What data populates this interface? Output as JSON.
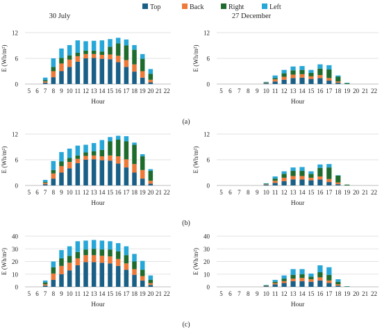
{
  "legend": {
    "position": "top-center",
    "items": [
      {
        "name": "Top",
        "color": "#1a5f86"
      },
      {
        "name": "Back",
        "color": "#ee7a3a"
      },
      {
        "name": "Right",
        "color": "#1f6b2e"
      },
      {
        "name": "Left",
        "color": "#27a7d8"
      }
    ]
  },
  "column_titles": [
    "30 July",
    "27 December"
  ],
  "panel_labels": [
    "(a)",
    "(b)",
    "(c)"
  ],
  "chart_data": [
    {
      "type": "bar",
      "stacked": true,
      "panel": "(a)",
      "title": "30 July",
      "xlabel": "Hour",
      "ylabel": "E (Wh/m²)",
      "categories": [
        "5",
        "6",
        "7",
        "8",
        "9",
        "10",
        "11",
        "12",
        "13",
        "14",
        "15",
        "16",
        "17",
        "18",
        "19",
        "20",
        "21",
        "22"
      ],
      "ylim": [
        0,
        12
      ],
      "yticks": [
        0,
        6,
        12
      ],
      "series": [
        {
          "name": "Top",
          "values": [
            0,
            0,
            0.3,
            1.6,
            3.0,
            4.0,
            5.2,
            6.0,
            6.1,
            5.9,
            5.8,
            5.1,
            4.0,
            2.9,
            1.5,
            0.4,
            0,
            0
          ]
        },
        {
          "name": "Back",
          "values": [
            0,
            0,
            0.3,
            1.4,
            1.8,
            1.7,
            1.3,
            1.0,
            0.9,
            0.9,
            1.1,
            1.5,
            1.6,
            1.7,
            1.5,
            0.6,
            0,
            0
          ]
        },
        {
          "name": "Right",
          "values": [
            0,
            0,
            0.3,
            1.0,
            1.3,
            1.0,
            0.8,
            0.8,
            0.8,
            0.8,
            1.8,
            2.9,
            3.4,
            3.4,
            2.9,
            1.4,
            0,
            0
          ]
        },
        {
          "name": "Left",
          "values": [
            0,
            0,
            0.6,
            2.0,
            2.2,
            2.4,
            2.9,
            2.2,
            2.3,
            2.6,
            1.8,
            1.3,
            1.4,
            1.1,
            1.1,
            1.1,
            0,
            0
          ]
        }
      ]
    },
    {
      "type": "bar",
      "stacked": true,
      "panel": "(a)",
      "title": "27 December",
      "xlabel": "Hour",
      "ylabel": "E (Wh/m²)",
      "categories": [
        "5",
        "6",
        "7",
        "8",
        "9",
        "10",
        "11",
        "12",
        "13",
        "14",
        "15",
        "16",
        "17",
        "18",
        "19",
        "20",
        "21",
        "22"
      ],
      "ylim": [
        0,
        12
      ],
      "yticks": [
        0,
        6,
        12
      ],
      "series": [
        {
          "name": "Top",
          "values": [
            0,
            0,
            0,
            0,
            0,
            0.2,
            0.6,
            1.0,
            1.4,
            1.5,
            1.2,
            1.4,
            0.8,
            0.3,
            0,
            0,
            0,
            0
          ]
        },
        {
          "name": "Back",
          "values": [
            0,
            0,
            0,
            0,
            0,
            0.1,
            0.5,
            0.7,
            0.8,
            0.8,
            0.6,
            0.7,
            0.6,
            0.3,
            0,
            0,
            0,
            0
          ]
        },
        {
          "name": "Right",
          "values": [
            0,
            0,
            0,
            0,
            0,
            0.1,
            0.3,
            0.8,
            1.0,
            1.0,
            0.8,
            1.5,
            2.0,
            1.1,
            0.2,
            0,
            0,
            0
          ]
        },
        {
          "name": "Left",
          "values": [
            0,
            0,
            0,
            0,
            0,
            0.1,
            0.6,
            0.8,
            0.9,
            0.9,
            0.7,
            1.0,
            1.0,
            0.3,
            0.1,
            0,
            0,
            0
          ]
        }
      ]
    },
    {
      "type": "bar",
      "stacked": true,
      "panel": "(b)",
      "title": "",
      "xlabel": "Hour",
      "ylabel": "E (Wh/m²)",
      "categories": [
        "5",
        "6",
        "7",
        "8",
        "9",
        "10",
        "11",
        "12",
        "13",
        "14",
        "15",
        "16",
        "17",
        "18",
        "19",
        "20",
        "21",
        "22"
      ],
      "ylim": [
        0,
        12
      ],
      "yticks": [
        0,
        6,
        12
      ],
      "series": [
        {
          "name": "Top",
          "values": [
            0,
            0,
            0.3,
            1.6,
            3.0,
            4.0,
            5.2,
            6.0,
            6.1,
            5.9,
            5.8,
            5.1,
            4.2,
            3.0,
            1.6,
            0.4,
            0,
            0
          ]
        },
        {
          "name": "Back",
          "values": [
            0,
            0,
            0.3,
            1.2,
            1.5,
            1.5,
            1.0,
            0.9,
            0.9,
            0.9,
            1.2,
            1.7,
            1.9,
            2.0,
            2.0,
            0.7,
            0,
            0
          ]
        },
        {
          "name": "Right",
          "values": [
            0,
            0,
            0.2,
            0.8,
            1.1,
            0.9,
            0.8,
            0.8,
            1.0,
            1.5,
            3.3,
            3.9,
            4.2,
            4.5,
            3.2,
            2.3,
            0,
            0
          ]
        },
        {
          "name": "Left",
          "values": [
            0,
            0,
            0.5,
            2.1,
            2.2,
            2.2,
            2.3,
            1.8,
            1.9,
            2.3,
            1.0,
            0.9,
            1.2,
            0.5,
            0.5,
            0.4,
            0,
            0
          ]
        }
      ]
    },
    {
      "type": "bar",
      "stacked": true,
      "panel": "(b)",
      "title": "",
      "xlabel": "Hour",
      "ylabel": "E (Wh/m²)",
      "categories": [
        "5",
        "6",
        "7",
        "8",
        "9",
        "10",
        "11",
        "12",
        "13",
        "14",
        "15",
        "16",
        "17",
        "18",
        "19",
        "20",
        "21",
        "22"
      ],
      "ylim": [
        0,
        12
      ],
      "yticks": [
        0,
        6,
        12
      ],
      "series": [
        {
          "name": "Top",
          "values": [
            0,
            0,
            0,
            0,
            0,
            0.2,
            0.6,
            1.0,
            1.4,
            1.4,
            1.2,
            1.4,
            0.8,
            0.3,
            0,
            0,
            0,
            0
          ]
        },
        {
          "name": "Back",
          "values": [
            0,
            0,
            0,
            0,
            0,
            0.1,
            0.5,
            0.8,
            0.8,
            0.8,
            0.6,
            0.7,
            0.7,
            0.4,
            0,
            0,
            0,
            0
          ]
        },
        {
          "name": "Right",
          "values": [
            0,
            0,
            0,
            0,
            0,
            0.1,
            0.5,
            0.9,
            1.2,
            1.2,
            0.9,
            2.0,
            2.7,
            1.6,
            0.2,
            0,
            0,
            0
          ]
        },
        {
          "name": "Left",
          "values": [
            0,
            0,
            0,
            0,
            0,
            0.1,
            0.5,
            0.6,
            0.8,
            0.9,
            0.6,
            0.8,
            0.8,
            0.1,
            0,
            0,
            0,
            0
          ]
        }
      ]
    },
    {
      "type": "bar",
      "stacked": true,
      "panel": "(c)",
      "title": "",
      "xlabel": "Hour",
      "ylabel": "E (Wh/m²)",
      "categories": [
        "5",
        "6",
        "7",
        "8",
        "9",
        "10",
        "11",
        "12",
        "13",
        "14",
        "15",
        "16",
        "17",
        "18",
        "19",
        "20",
        "21",
        "22"
      ],
      "ylim": [
        0,
        40
      ],
      "yticks": [
        0,
        10,
        20,
        30,
        40
      ],
      "series": [
        {
          "name": "Top",
          "values": [
            0,
            0,
            1.0,
            5.5,
            10.0,
            13.0,
            17.0,
            19.5,
            19.5,
            19.0,
            18.5,
            16.5,
            13.5,
            9.5,
            5.0,
            1.5,
            0,
            0
          ]
        },
        {
          "name": "Back",
          "values": [
            0,
            0,
            1.0,
            5.0,
            6.5,
            6.0,
            5.5,
            5.5,
            5.5,
            5.5,
            5.5,
            5.5,
            5.0,
            4.5,
            3.5,
            1.5,
            0,
            0
          ]
        },
        {
          "name": "Right",
          "values": [
            0,
            0,
            1.5,
            5.0,
            6.0,
            5.5,
            5.0,
            4.5,
            5.0,
            5.0,
            5.5,
            6.0,
            6.5,
            6.0,
            5.0,
            2.5,
            0,
            0
          ]
        },
        {
          "name": "Left",
          "values": [
            0,
            0,
            1.5,
            4.5,
            6.5,
            7.5,
            8.5,
            7.0,
            7.0,
            7.0,
            6.5,
            6.5,
            7.0,
            6.0,
            7.0,
            3.5,
            0,
            0
          ]
        }
      ]
    },
    {
      "type": "bar",
      "stacked": true,
      "panel": "(c)",
      "title": "",
      "xlabel": "Hour",
      "ylabel": "E (Wh/m²)",
      "categories": [
        "5",
        "6",
        "7",
        "8",
        "9",
        "10",
        "11",
        "12",
        "13",
        "14",
        "15",
        "16",
        "17",
        "18",
        "19",
        "20",
        "21",
        "22"
      ],
      "ylim": [
        0,
        40
      ],
      "yticks": [
        0,
        10,
        20,
        30,
        40
      ],
      "series": [
        {
          "name": "Top",
          "values": [
            0,
            0,
            0,
            0,
            0,
            0.5,
            2.0,
            3.0,
            4.5,
            4.5,
            4.0,
            5.0,
            3.0,
            1.0,
            0,
            0,
            0,
            0
          ]
        },
        {
          "name": "Back",
          "values": [
            0,
            0,
            0,
            0,
            0,
            0.3,
            1.0,
            1.5,
            2.0,
            2.5,
            2.0,
            2.5,
            2.0,
            1.0,
            0,
            0,
            0,
            0
          ]
        },
        {
          "name": "Right",
          "values": [
            0,
            0,
            0,
            0,
            0,
            0.3,
            1.0,
            2.0,
            3.0,
            3.0,
            2.0,
            4.0,
            4.5,
            2.0,
            0.3,
            0,
            0,
            0
          ]
        },
        {
          "name": "Left",
          "values": [
            0,
            0,
            0,
            0,
            0,
            0.4,
            1.5,
            2.5,
            4.5,
            4.0,
            2.5,
            5.5,
            6.0,
            2.0,
            0.2,
            0,
            0,
            0
          ]
        }
      ]
    }
  ]
}
